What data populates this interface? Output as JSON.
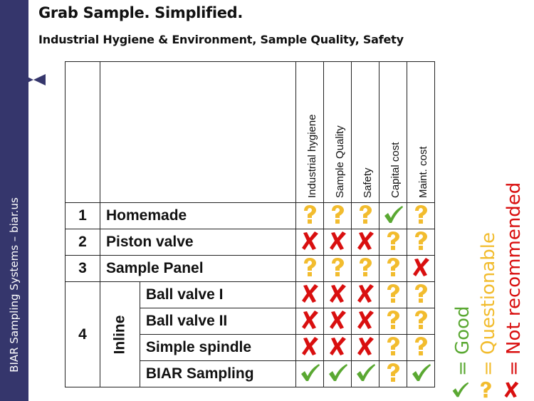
{
  "slide": {
    "title": "Grab Sample. Simplified.",
    "subtitle": "Industrial Hygiene & Environment, Sample Quality, Safety",
    "sidebar_text": "BIAR Sampling Systems – biar.us",
    "colors": {
      "sidebar": "#35366c",
      "good": "#5aa832",
      "questionable": "#f2bc2e",
      "not_recommended": "#d90f0f"
    }
  },
  "table": {
    "columns": [
      "Industrial hygiene",
      "Sample Quality",
      "Safety",
      "Capital cost",
      "Maint. cost"
    ],
    "rows": [
      {
        "num": "1",
        "name": "Homemade",
        "ratings": [
          "questionable",
          "questionable",
          "questionable",
          "good",
          "questionable"
        ]
      },
      {
        "num": "2",
        "name": "Piston valve",
        "ratings": [
          "not_recommended",
          "not_recommended",
          "not_recommended",
          "questionable",
          "questionable"
        ]
      },
      {
        "num": "3",
        "name": "Sample Panel",
        "ratings": [
          "questionable",
          "questionable",
          "questionable",
          "questionable",
          "not_recommended"
        ]
      },
      {
        "num": "4",
        "group": "Inline",
        "name": "Ball valve I",
        "ratings": [
          "not_recommended",
          "not_recommended",
          "not_recommended",
          "questionable",
          "questionable"
        ]
      },
      {
        "num": "4",
        "group": "Inline",
        "name": "Ball valve II",
        "ratings": [
          "not_recommended",
          "not_recommended",
          "not_recommended",
          "questionable",
          "questionable"
        ]
      },
      {
        "num": "4",
        "group": "Inline",
        "name": "Simple spindle",
        "ratings": [
          "not_recommended",
          "not_recommended",
          "not_recommended",
          "questionable",
          "questionable"
        ]
      },
      {
        "num": "4",
        "group": "Inline",
        "name": "BIAR Sampling",
        "ratings": [
          "good",
          "good",
          "good",
          "questionable",
          "good"
        ]
      }
    ],
    "group4": {
      "num": "4",
      "label": "Inline"
    }
  },
  "legend": [
    {
      "key": "good",
      "icon": "check-icon",
      "label": "= Good"
    },
    {
      "key": "questionable",
      "icon": "question-icon",
      "label": "= Questionable"
    },
    {
      "key": "not_recommended",
      "icon": "cross-icon",
      "label": "= Not recommended"
    }
  ]
}
